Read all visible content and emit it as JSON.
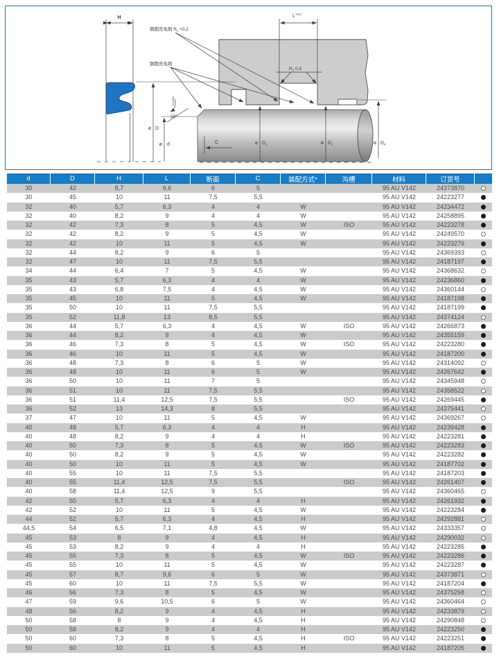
{
  "colors": {
    "accent_blue_header": "#187cc5",
    "row_alt_gray": "#cbcbcb",
    "table_text": "#4a4a4a",
    "frame_teal": "#2f7094",
    "seal_blue": "#2173c4",
    "housing_gray": "#cdcdcd",
    "line_dark": "#3c3c3c",
    "marker_filled": "#1c1c1c"
  },
  "diagram": {
    "labels": {
      "h": "H",
      "deburr_rz_pre": "倒圆去毛刺 R",
      "deburr_rz_sub": "z",
      "deburr_rz_post": " <0,2",
      "deburr": "倒圆去毛刺",
      "l_pre": "L",
      "l_sup": "+0,2",
      "r1_pre": "R",
      "r1_sub": "1",
      "r1_post": " 0,4",
      "angle": "20°",
      "dia": "ø",
      "dia_D": "D",
      "dia_d": "d",
      "c": "C",
      "d2_sub": "2",
      "d1_sub": "1",
      "df_sub": "F"
    }
  },
  "table": {
    "columns": [
      "d",
      "D",
      "H",
      "L",
      "断面",
      "C",
      "装配方式*",
      "沟槽",
      "材料",
      "订货号",
      ""
    ],
    "rows": [
      [
        "30",
        "42",
        "8,7",
        "9,6",
        "6",
        "5",
        "",
        "",
        "95 AU V142",
        "24373870",
        "open"
      ],
      [
        "30",
        "45",
        "10",
        "11",
        "7,5",
        "5,5",
        "",
        "",
        "95 AU V142",
        "24223277",
        "filled"
      ],
      [
        "32",
        "40",
        "5,7",
        "6,3",
        "4",
        "4",
        "W",
        "",
        "95 AU V142",
        "24234472",
        "filled"
      ],
      [
        "32",
        "40",
        "8,2",
        "9",
        "4",
        "4",
        "W",
        "",
        "95 AU V142",
        "24258895",
        "filled"
      ],
      [
        "32",
        "42",
        "7,3",
        "8",
        "5",
        "4,5",
        "W",
        "ISO",
        "95 AU V142",
        "24223278",
        "filled"
      ],
      [
        "32",
        "42",
        "8,2",
        "9",
        "5",
        "4,5",
        "W",
        "",
        "95 AU V142",
        "24249570",
        "open"
      ],
      [
        "32",
        "42",
        "10",
        "11",
        "5",
        "4,5",
        "W",
        "",
        "95 AU V142",
        "24223279",
        "filled"
      ],
      [
        "32",
        "44",
        "8,2",
        "9",
        "6",
        "5",
        "",
        "",
        "95 AU V142",
        "24369393",
        "open"
      ],
      [
        "32",
        "47",
        "10",
        "11",
        "7,5",
        "5,5",
        "",
        "",
        "95 AU V142",
        "24187197",
        "filled"
      ],
      [
        "34",
        "44",
        "6,4",
        "7",
        "5",
        "4,5",
        "W",
        "",
        "95 AU V142",
        "24368632",
        "open"
      ],
      [
        "35",
        "43",
        "5,7",
        "6,3",
        "4",
        "4",
        "W",
        "",
        "95 AU V142",
        "24236860",
        "filled"
      ],
      [
        "35",
        "43",
        "6,8",
        "7,5",
        "4",
        "4,5",
        "W",
        "",
        "95 AU V142",
        "24360144",
        "open"
      ],
      [
        "35",
        "45",
        "10",
        "11",
        "5",
        "4,5",
        "W",
        "",
        "95 AU V142",
        "24187198",
        "filled"
      ],
      [
        "35",
        "50",
        "10",
        "11",
        "7,5",
        "5,5",
        "",
        "",
        "95 AU V142",
        "24187199",
        "filled"
      ],
      [
        "35",
        "52",
        "11,8",
        "13",
        "8,5",
        "5,5",
        "",
        "",
        "95 AU V142",
        "24374124",
        "open"
      ],
      [
        "36",
        "44",
        "5,7",
        "6,3",
        "4",
        "4,5",
        "W",
        "ISO",
        "95 AU V142",
        "24266873",
        "filled"
      ],
      [
        "36",
        "44",
        "8,2",
        "9",
        "4",
        "4,5",
        "W",
        "",
        "95 AU V142",
        "24355159",
        "filled"
      ],
      [
        "36",
        "46",
        "7,3",
        "8",
        "5",
        "4,5",
        "W",
        "ISO",
        "95 AU V142",
        "24223280",
        "filled"
      ],
      [
        "36",
        "46",
        "10",
        "11",
        "5",
        "4,5",
        "W",
        "",
        "95 AU V142",
        "24187200",
        "filled"
      ],
      [
        "36",
        "48",
        "7,3",
        "8",
        "6",
        "5",
        "W",
        "",
        "95 AU V142",
        "24314092",
        "open"
      ],
      [
        "36",
        "48",
        "10",
        "11",
        "6",
        "5",
        "W",
        "",
        "95 AU V142",
        "24267642",
        "filled"
      ],
      [
        "36",
        "50",
        "10",
        "11",
        "7",
        "5",
        "",
        "",
        "95 AU V142",
        "24345948",
        "open"
      ],
      [
        "36",
        "51",
        "10",
        "11",
        "7,5",
        "5,5",
        "",
        "",
        "95 AU V142",
        "24358522",
        "open"
      ],
      [
        "36",
        "51",
        "11,4",
        "12,5",
        "7,5",
        "5,5",
        "",
        "ISO",
        "95 AU V142",
        "24269445",
        "filled"
      ],
      [
        "36",
        "52",
        "13",
        "14,3",
        "8",
        "5,5",
        "",
        "",
        "95 AU V142",
        "24375441",
        "open"
      ],
      [
        "37",
        "47",
        "10",
        "11",
        "5",
        "4,5",
        "W",
        "",
        "95 AU V142",
        "24369267",
        "open"
      ],
      [
        "40",
        "48",
        "5,7",
        "6,3",
        "4",
        "4",
        "H",
        "",
        "95 AU V142",
        "24239428",
        "filled"
      ],
      [
        "40",
        "48",
        "8,2",
        "9",
        "4",
        "4",
        "H",
        "",
        "95 AU V142",
        "24223281",
        "filled"
      ],
      [
        "40",
        "50",
        "7,3",
        "8",
        "5",
        "4,5",
        "W",
        "ISO",
        "95 AU V142",
        "24223283",
        "filled"
      ],
      [
        "40",
        "50",
        "8,2",
        "9",
        "5",
        "4,5",
        "W",
        "",
        "95 AU V142",
        "24223282",
        "filled"
      ],
      [
        "40",
        "50",
        "10",
        "11",
        "5",
        "4,5",
        "W",
        "",
        "95 AU V142",
        "24187702",
        "filled"
      ],
      [
        "40",
        "55",
        "10",
        "11",
        "7,5",
        "5,5",
        "",
        "",
        "95 AU V142",
        "24187203",
        "filled"
      ],
      [
        "40",
        "55",
        "11,4",
        "12,5",
        "7,5",
        "5,5",
        "",
        "ISO",
        "95 AU V142",
        "24261407",
        "filled"
      ],
      [
        "40",
        "58",
        "11,4",
        "12,5",
        "9",
        "5,5",
        "",
        "",
        "95 AU V142",
        "24360465",
        "open"
      ],
      [
        "42",
        "50",
        "5,7",
        "6,3",
        "4",
        "4",
        "H",
        "",
        "95 AU V142",
        "24261932",
        "filled"
      ],
      [
        "42",
        "52",
        "10",
        "11",
        "5",
        "4,5",
        "W",
        "",
        "95 AU V142",
        "24223284",
        "filled"
      ],
      [
        "44",
        "52",
        "5,7",
        "6,3",
        "4",
        "4,5",
        "H",
        "",
        "95 AU V142",
        "24292881",
        "open"
      ],
      [
        "44,5",
        "54",
        "6,5",
        "7,1",
        "4,8",
        "4,5",
        "W",
        "",
        "95 AU V142",
        "24333357",
        "open"
      ],
      [
        "45",
        "53",
        "8",
        "9",
        "4",
        "4,5",
        "H",
        "",
        "95 AU V142",
        "24290032",
        "open"
      ],
      [
        "45",
        "53",
        "8,2",
        "9",
        "4",
        "4",
        "H",
        "",
        "95 AU V142",
        "24223285",
        "filled"
      ],
      [
        "45",
        "55",
        "7,3",
        "8",
        "5",
        "4,5",
        "W",
        "ISO",
        "95 AU V142",
        "24223286",
        "filled"
      ],
      [
        "45",
        "55",
        "10",
        "11",
        "5",
        "4,5",
        "W",
        "",
        "95 AU V142",
        "24223287",
        "filled"
      ],
      [
        "45",
        "57",
        "8,7",
        "9,6",
        "6",
        "5",
        "W",
        "",
        "95 AU V142",
        "24373871",
        "open"
      ],
      [
        "45",
        "60",
        "10",
        "11",
        "7,5",
        "5,5",
        "W",
        "",
        "95 AU V142",
        "24187204",
        "filled"
      ],
      [
        "46",
        "56",
        "7,3",
        "8",
        "5",
        "4,5",
        "W",
        "",
        "95 AU V142",
        "24375268",
        "open"
      ],
      [
        "47",
        "59",
        "9,6",
        "10,5",
        "6",
        "5",
        "W",
        "",
        "95 AU V142",
        "24360464",
        "open"
      ],
      [
        "48",
        "56",
        "8,2",
        "9",
        "4",
        "4,5",
        "H",
        "",
        "95 AU V142",
        "24233879",
        "open"
      ],
      [
        "50",
        "58",
        "8",
        "9",
        "4",
        "4,5",
        "H",
        "",
        "95 AU V142",
        "24290848",
        "open"
      ],
      [
        "50",
        "58",
        "8,2",
        "9",
        "4",
        "4",
        "H",
        "",
        "95 AU V142",
        "24223250",
        "filled"
      ],
      [
        "50",
        "60",
        "7,3",
        "8",
        "5",
        "4,5",
        "H",
        "ISO",
        "95 AU V142",
        "24223251",
        "filled"
      ],
      [
        "50",
        "60",
        "10",
        "11",
        "5",
        "4,5",
        "H",
        "",
        "95 AU V142",
        "24187205",
        "filled"
      ]
    ]
  }
}
